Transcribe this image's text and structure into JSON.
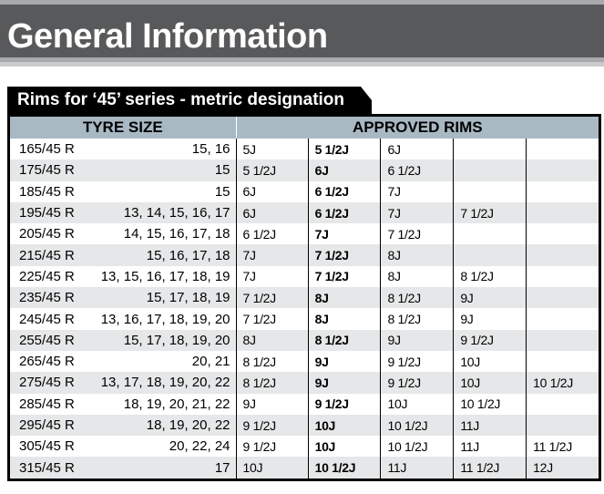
{
  "header": {
    "title": "General Information"
  },
  "table": {
    "caption": "Rims for ‘45’ series - metric designation",
    "columns": [
      "TYRE SIZE",
      "APPROVED RIMS"
    ],
    "rows": [
      {
        "size": "165/45 R",
        "rims": "15, 16",
        "approved": [
          "5J",
          "5 1/2J",
          "6J",
          "",
          ""
        ]
      },
      {
        "size": "175/45 R",
        "rims": "15",
        "approved": [
          "5 1/2J",
          "6J",
          "6 1/2J",
          "",
          ""
        ]
      },
      {
        "size": "185/45 R",
        "rims": "15",
        "approved": [
          "6J",
          "6 1/2J",
          "7J",
          "",
          ""
        ]
      },
      {
        "size": "195/45 R",
        "rims": "13, 14, 15, 16, 17",
        "approved": [
          "6J",
          "6 1/2J",
          "7J",
          "7 1/2J",
          ""
        ]
      },
      {
        "size": "205/45 R",
        "rims": "14, 15, 16, 17, 18",
        "approved": [
          "6 1/2J",
          "7J",
          "7 1/2J",
          "",
          ""
        ]
      },
      {
        "size": "215/45 R",
        "rims": "15, 16, 17, 18",
        "approved": [
          "7J",
          "7 1/2J",
          "8J",
          "",
          ""
        ]
      },
      {
        "size": "225/45 R",
        "rims": "13, 15, 16, 17, 18, 19",
        "approved": [
          "7J",
          "7 1/2J",
          "8J",
          "8 1/2J",
          ""
        ]
      },
      {
        "size": "235/45 R",
        "rims": "15, 17, 18, 19",
        "approved": [
          "7 1/2J",
          "8J",
          "8 1/2J",
          "9J",
          ""
        ]
      },
      {
        "size": "245/45 R",
        "rims": "13, 16, 17, 18, 19, 20",
        "approved": [
          "7 1/2J",
          "8J",
          "8 1/2J",
          "9J",
          ""
        ]
      },
      {
        "size": "255/45 R",
        "rims": "15, 17, 18, 19, 20",
        "approved": [
          "8J",
          "8 1/2J",
          "9J",
          "9 1/2J",
          ""
        ]
      },
      {
        "size": "265/45 R",
        "rims": "20, 21",
        "approved": [
          "8 1/2J",
          "9J",
          "9 1/2J",
          "10J",
          ""
        ]
      },
      {
        "size": "275/45 R",
        "rims": "13, 17, 18, 19, 20, 22",
        "approved": [
          "8 1/2J",
          "9J",
          "9 1/2J",
          "10J",
          "10 1/2J"
        ]
      },
      {
        "size": "285/45 R",
        "rims": "18, 19, 20, 21, 22",
        "approved": [
          "9J",
          "9 1/2J",
          "10J",
          "10 1/2J",
          ""
        ]
      },
      {
        "size": "295/45 R",
        "rims": "18, 19, 20, 22",
        "approved": [
          "9 1/2J",
          "10J",
          "10 1/2J",
          "11J",
          ""
        ]
      },
      {
        "size": "305/45 R",
        "rims": "20, 22, 24",
        "approved": [
          "9 1/2J",
          "10J",
          "10 1/2J",
          "11J",
          "11 1/2J"
        ]
      },
      {
        "size": "315/45 R",
        "rims": "17",
        "approved": [
          "10J",
          "10 1/2J",
          "11J",
          "11 1/2J",
          "12J"
        ]
      }
    ]
  }
}
